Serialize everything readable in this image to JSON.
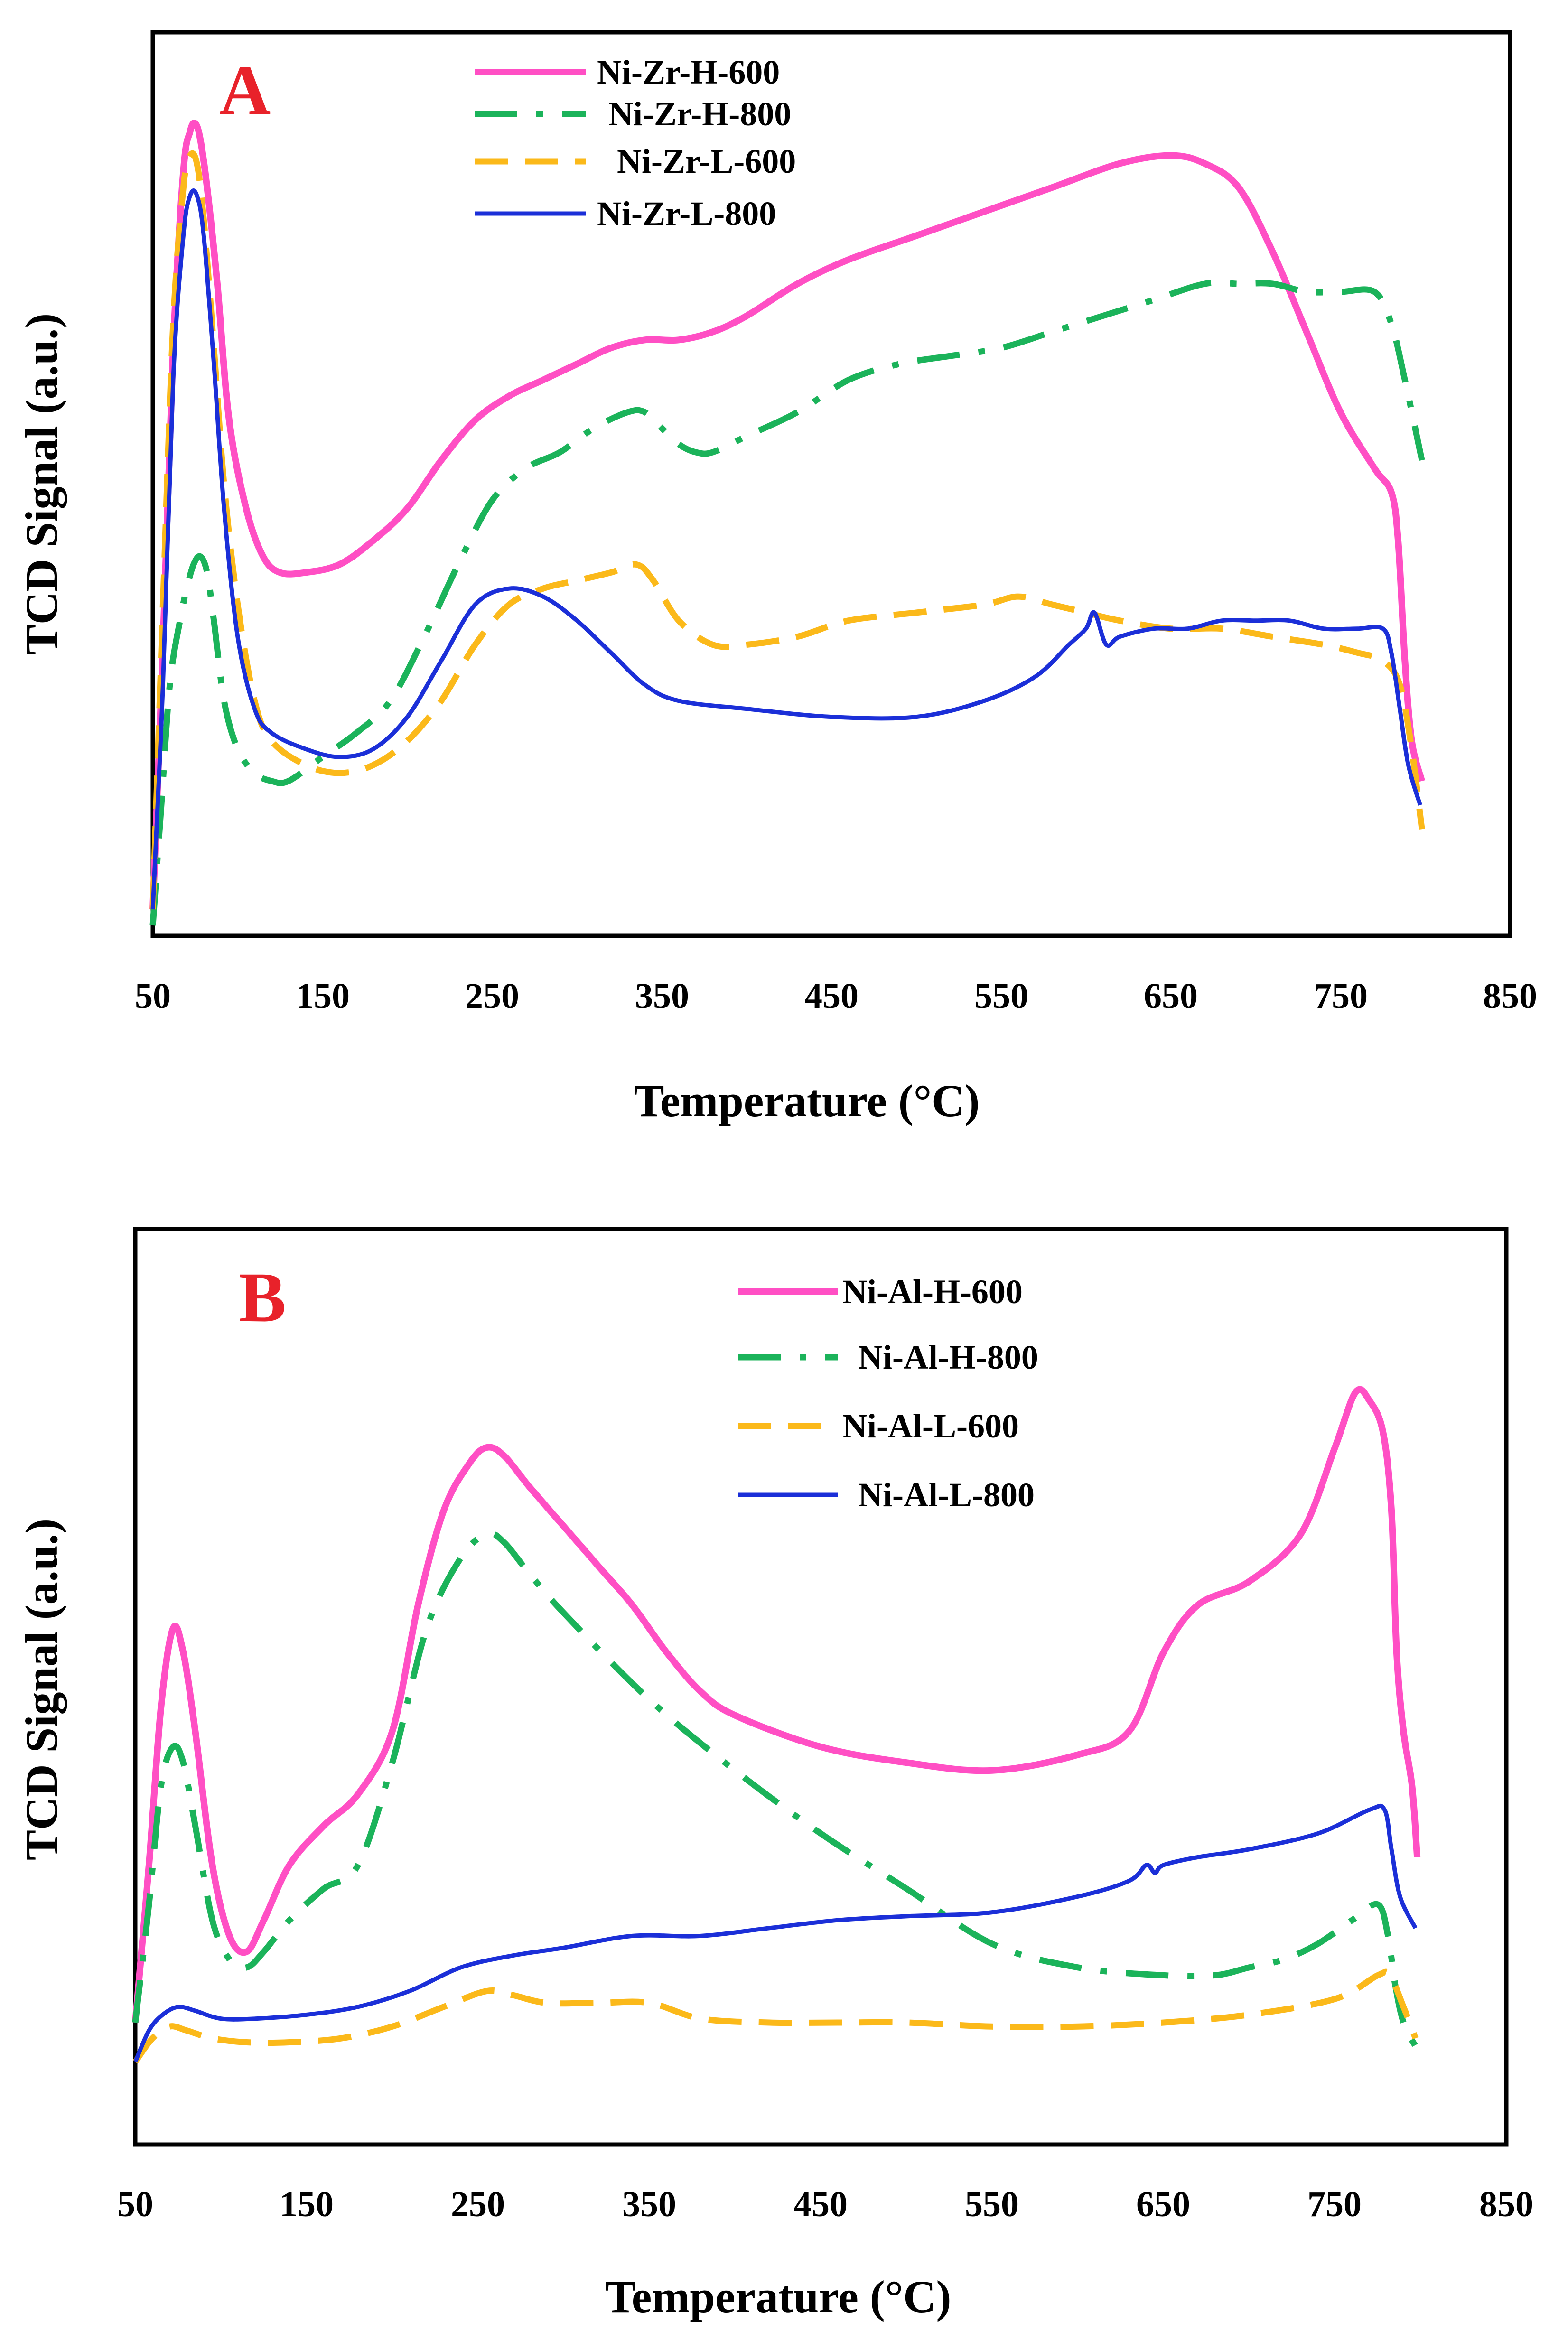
{
  "figure": {
    "panels": [
      "A",
      "B"
    ]
  },
  "chart_data": [
    {
      "type": "line",
      "panel_label": "A",
      "xlabel": "Temperature (°C)",
      "ylabel": "TCD Signal (a.u.)",
      "xlim": [
        50,
        850
      ],
      "ylim": [
        0,
        100
      ],
      "xticks": [
        50,
        150,
        250,
        350,
        450,
        550,
        650,
        750,
        850
      ],
      "yticks_shown": false,
      "legend_position": "top-center",
      "series": [
        {
          "name": "Ni-Zr-H-600",
          "color": "#ff4fc4",
          "dash": "solid",
          "width": 14,
          "x": [
            50,
            56,
            62,
            68,
            72,
            75,
            78,
            82,
            88,
            95,
            105,
            115,
            125,
            140,
            160,
            180,
            200,
            220,
            240,
            260,
            280,
            300,
            320,
            340,
            360,
            380,
            400,
            430,
            460,
            500,
            540,
            580,
            620,
            650,
            670,
            690,
            710,
            730,
            750,
            770,
            780,
            784,
            788,
            792,
            798
          ],
          "y": [
            2,
            35,
            72,
            94,
            99,
            100,
            98,
            92,
            80,
            63,
            52,
            46,
            44,
            44,
            45,
            48,
            52,
            58,
            63,
            66,
            68,
            70,
            72,
            73,
            73,
            74,
            76,
            80,
            83,
            86,
            89,
            92,
            95,
            96,
            95,
            92,
            84,
            74,
            64,
            57,
            54,
            48,
            33,
            23,
            18
          ]
        },
        {
          "name": "Ni-Zr-H-800",
          "color": "#1bb35a",
          "dash": "dashdot",
          "width": 13,
          "x": [
            50,
            55,
            60,
            66,
            70,
            74,
            78,
            82,
            86,
            92,
            100,
            110,
            120,
            130,
            150,
            170,
            190,
            210,
            230,
            250,
            270,
            290,
            310,
            330,
            340,
            350,
            360,
            370,
            380,
            400,
            430,
            460,
            490,
            520,
            550,
            580,
            610,
            640,
            670,
            690,
            710,
            730,
            750,
            770,
            780,
            788,
            798
          ],
          "y": [
            0,
            15,
            30,
            38,
            42,
            45,
            46,
            44,
            38,
            28,
            22,
            19,
            18,
            18,
            21,
            24,
            28,
            36,
            45,
            53,
            57,
            59,
            62,
            64,
            64,
            62,
            60,
            59,
            59,
            61,
            64,
            68,
            70,
            71,
            72,
            74,
            76,
            78,
            80,
            80,
            80,
            79,
            79,
            79,
            75,
            68,
            58
          ]
        },
        {
          "name": "Ni-Zr-L-600",
          "color": "#fbb91a",
          "dash": "dash",
          "width": 13,
          "x": [
            50,
            56,
            62,
            68,
            72,
            76,
            80,
            86,
            92,
            100,
            110,
            120,
            140,
            160,
            180,
            200,
            220,
            240,
            260,
            280,
            300,
            320,
            335,
            345,
            360,
            380,
            400,
            430,
            460,
            500,
            540,
            560,
            580,
            600,
            620,
            650,
            680,
            710,
            740,
            760,
            775,
            785,
            792,
            798
          ],
          "y": [
            2,
            40,
            75,
            92,
            96,
            95,
            88,
            72,
            55,
            40,
            28,
            23,
            20,
            19,
            20,
            23,
            28,
            35,
            40,
            42,
            43,
            44,
            45,
            43,
            38,
            35,
            35,
            36,
            38,
            39,
            40,
            41,
            40,
            39,
            38,
            37,
            37,
            36,
            35,
            34,
            33,
            30,
            22,
            12
          ]
        },
        {
          "name": "Ni-Zr-L-800",
          "color": "#1b2fd8",
          "dash": "solid",
          "width": 9,
          "x": [
            50,
            56,
            62,
            68,
            72,
            76,
            80,
            86,
            92,
            100,
            110,
            120,
            140,
            160,
            180,
            200,
            220,
            240,
            260,
            280,
            300,
            320,
            340,
            360,
            400,
            450,
            500,
            540,
            570,
            590,
            600,
            605,
            612,
            620,
            640,
            660,
            680,
            700,
            720,
            740,
            760,
            775,
            780,
            785,
            790,
            797
          ],
          "y": [
            2,
            30,
            68,
            86,
            91,
            91,
            86,
            70,
            52,
            36,
            27,
            24,
            22,
            21,
            22,
            26,
            33,
            40,
            42,
            41,
            38,
            34,
            30,
            28,
            27,
            26,
            26,
            28,
            31,
            35,
            37,
            39,
            35,
            36,
            37,
            37,
            38,
            38,
            38,
            37,
            37,
            37,
            34,
            27,
            20,
            15
          ]
        }
      ]
    },
    {
      "type": "line",
      "panel_label": "B",
      "xlabel": "Temperature (°C)",
      "ylabel": "TCD Signal (a.u.)",
      "xlim": [
        50,
        850
      ],
      "ylim": [
        0,
        100
      ],
      "xticks": [
        50,
        150,
        250,
        350,
        450,
        550,
        650,
        750,
        850
      ],
      "yticks_shown": false,
      "legend_position": "top-center",
      "series": [
        {
          "name": "Ni-Al-H-600",
          "color": "#ff4fc4",
          "dash": "solid",
          "width": 14,
          "x": [
            50,
            58,
            65,
            72,
            78,
            85,
            95,
            105,
            115,
            125,
            140,
            160,
            180,
            200,
            215,
            230,
            245,
            255,
            265,
            280,
            300,
            320,
            340,
            360,
            380,
            400,
            450,
            500,
            550,
            600,
            630,
            650,
            670,
            700,
            730,
            750,
            762,
            770,
            778,
            783,
            786,
            790,
            795,
            798
          ],
          "y": [
            5,
            25,
            45,
            55,
            52,
            42,
            25,
            16,
            14,
            18,
            25,
            30,
            34,
            42,
            58,
            70,
            76,
            78,
            77,
            73,
            68,
            63,
            58,
            52,
            47,
            44,
            40,
            38,
            37,
            39,
            42,
            52,
            58,
            61,
            67,
            78,
            85,
            84,
            80,
            70,
            52,
            42,
            35,
            26
          ]
        },
        {
          "name": "Ni-Al-H-800",
          "color": "#1bb35a",
          "dash": "dashdot",
          "width": 13,
          "x": [
            50,
            58,
            65,
            72,
            78,
            85,
            95,
            105,
            115,
            125,
            140,
            160,
            180,
            200,
            220,
            240,
            255,
            265,
            280,
            300,
            350,
            400,
            450,
            500,
            550,
            600,
            650,
            680,
            700,
            720,
            740,
            760,
            775,
            781,
            785,
            790,
            797
          ],
          "y": [
            5,
            20,
            35,
            40,
            38,
            30,
            18,
            13,
            12,
            14,
            18,
            22,
            25,
            38,
            55,
            64,
            67,
            66,
            62,
            57,
            46,
            37,
            29,
            22,
            15,
            12,
            11,
            11,
            12,
            13,
            15,
            18,
            20,
            16,
            10,
            5,
            2
          ]
        },
        {
          "name": "Ni-Al-L-600",
          "color": "#fbb91a",
          "dash": "dash",
          "width": 13,
          "x": [
            50,
            60,
            70,
            80,
            95,
            115,
            140,
            170,
            200,
            230,
            255,
            270,
            290,
            320,
            350,
            380,
            420,
            460,
            500,
            550,
            600,
            650,
            700,
            750,
            775,
            782,
            790,
            797
          ],
          "y": [
            0,
            3,
            4.5,
            4,
            3,
            2.5,
            2.5,
            3,
            4.5,
            7,
            9,
            8.5,
            7.5,
            7.5,
            7.5,
            5.5,
            5,
            5,
            5,
            4.5,
            4.5,
            5,
            6,
            8,
            11,
            11,
            7,
            3
          ]
        },
        {
          "name": "Ni-Al-L-800",
          "color": "#1b2fd8",
          "dash": "solid",
          "width": 9,
          "x": [
            50,
            58,
            66,
            75,
            85,
            100,
            120,
            150,
            180,
            210,
            240,
            270,
            300,
            340,
            380,
            420,
            460,
            500,
            550,
            600,
            630,
            640,
            645,
            650,
            670,
            700,
            740,
            770,
            779,
            783,
            788,
            797
          ],
          "y": [
            0,
            4,
            6,
            7,
            6.5,
            5.5,
            5.5,
            6,
            7,
            9,
            12,
            13.5,
            14.5,
            16,
            16,
            17,
            18,
            18.5,
            19,
            21,
            23,
            25,
            24,
            25,
            26,
            27,
            29,
            32,
            32,
            27,
            21,
            17
          ]
        }
      ]
    }
  ]
}
